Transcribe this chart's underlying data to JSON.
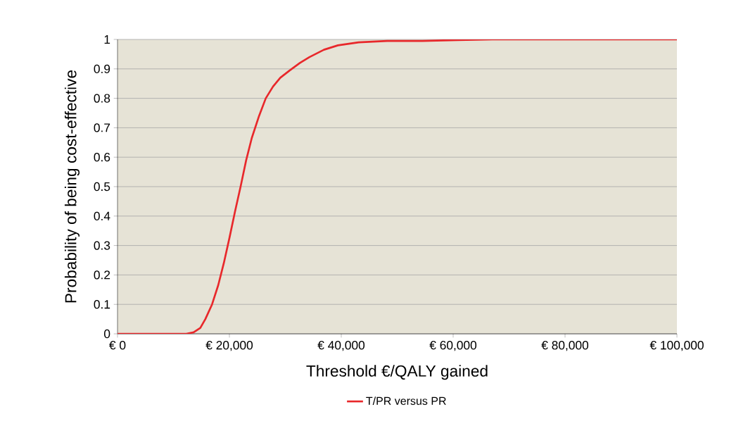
{
  "chart_data": {
    "type": "line",
    "xlabel": "Threshold €/QALY gained",
    "ylabel": "Probability of being cost-effective",
    "series": [
      {
        "name": "T/PR versus PR",
        "color": "#e8282b",
        "x": [
          0,
          12300,
          13600,
          14800,
          15700,
          16900,
          18000,
          19000,
          20000,
          21000,
          22000,
          23000,
          24000,
          25300,
          26500,
          27800,
          29100,
          30800,
          32600,
          34300,
          36900,
          39400,
          43100,
          48200,
          54500,
          60800,
          67000,
          100000
        ],
        "values": [
          0,
          0,
          0.005,
          0.02,
          0.05,
          0.1,
          0.165,
          0.24,
          0.325,
          0.415,
          0.5,
          0.59,
          0.665,
          0.74,
          0.8,
          0.84,
          0.87,
          0.895,
          0.92,
          0.94,
          0.965,
          0.98,
          0.99,
          0.995,
          0.995,
          0.998,
          1,
          1
        ]
      }
    ],
    "xlim": [
      0,
      100000
    ],
    "ylim": [
      0,
      1
    ],
    "xticks": [
      {
        "value": 0,
        "label": "€ 0"
      },
      {
        "value": 20000,
        "label": "€ 20,000"
      },
      {
        "value": 40000,
        "label": "€ 40,000"
      },
      {
        "value": 60000,
        "label": "€ 60,000"
      },
      {
        "value": 80000,
        "label": "€ 80,000"
      },
      {
        "value": 100000,
        "label": "€ 100,000"
      }
    ],
    "yticks": [
      0,
      0.1,
      0.2,
      0.3,
      0.4,
      0.5,
      0.6,
      0.7,
      0.8,
      0.9,
      1
    ],
    "grid": "y",
    "legend": "bottom",
    "marker": "none",
    "line_style": "solid"
  }
}
